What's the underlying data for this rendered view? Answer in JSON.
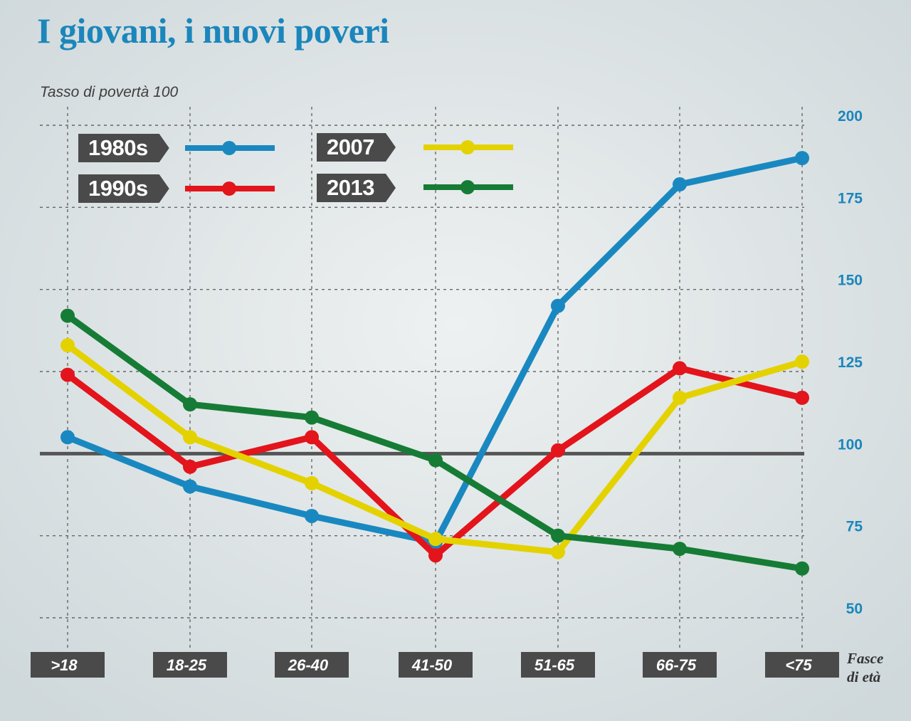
{
  "title": "I giovani, i nuovi poveri",
  "y_axis_label": "Tasso di povertà 100",
  "x_axis_label_line1": "Fasce",
  "x_axis_label_line2": "di età",
  "colors": {
    "accent_title": "#1b86bb",
    "tick_text": "#1b86bb",
    "label_box": "#4a4a4a",
    "reference_line": "#555555"
  },
  "chart_data": {
    "type": "line",
    "title": "I giovani, i nuovi poveri",
    "ylabel": "Tasso di povertà 100",
    "xlabel": "Fasce di età",
    "categories": [
      ">18",
      "18-25",
      "26-40",
      "41-50",
      "51-65",
      "66-75",
      "<75"
    ],
    "ylim": [
      40,
      200
    ],
    "yticks": [
      50,
      75,
      100,
      125,
      150,
      175,
      200
    ],
    "reference_value": 100,
    "grid": true,
    "legend_position": "top-left",
    "series": [
      {
        "name": "1980s",
        "color": "#1a88c0",
        "values": [
          105,
          90,
          81,
          73,
          145,
          182,
          190
        ]
      },
      {
        "name": "1990s",
        "color": "#e3141b",
        "values": [
          124,
          96,
          105,
          69,
          101,
          126,
          117
        ]
      },
      {
        "name": "2007",
        "color": "#e4d200",
        "values": [
          133,
          105,
          91,
          74,
          70,
          117,
          128
        ]
      },
      {
        "name": "2013",
        "color": "#167c35",
        "values": [
          142,
          115,
          111,
          98,
          75,
          71,
          65
        ]
      }
    ]
  }
}
